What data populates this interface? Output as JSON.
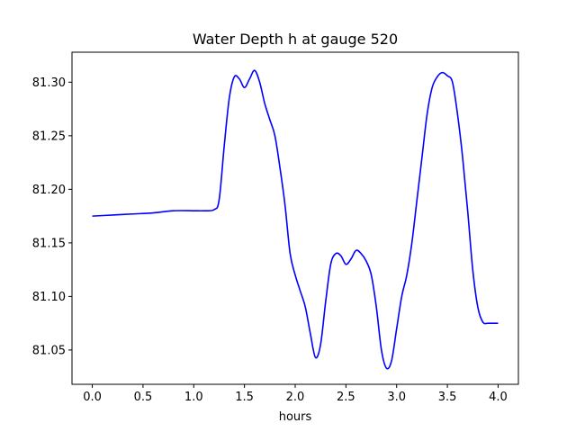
{
  "chart_data": {
    "type": "line",
    "title": "Water Depth h at gauge 520",
    "xlabel": "hours",
    "ylabel": "",
    "xlim": [
      -0.2,
      4.2
    ],
    "ylim": [
      81.018,
      81.328
    ],
    "xticks": [
      0.0,
      0.5,
      1.0,
      1.5,
      2.0,
      2.5,
      3.0,
      3.5,
      4.0
    ],
    "xtick_labels": [
      "0.0",
      "0.5",
      "1.0",
      "1.5",
      "2.0",
      "2.5",
      "3.0",
      "3.5",
      "4.0"
    ],
    "yticks": [
      81.05,
      81.1,
      81.15,
      81.2,
      81.25,
      81.3
    ],
    "ytick_labels": [
      "81.05",
      "81.10",
      "81.15",
      "81.20",
      "81.25",
      "81.30"
    ],
    "grid": false,
    "legend": "none",
    "series": [
      {
        "color": "#0000ff",
        "x": [
          0.0,
          0.2,
          0.4,
          0.6,
          0.8,
          1.0,
          1.1,
          1.2,
          1.25,
          1.3,
          1.35,
          1.4,
          1.45,
          1.5,
          1.55,
          1.6,
          1.65,
          1.7,
          1.75,
          1.8,
          1.85,
          1.9,
          1.95,
          2.0,
          2.05,
          2.1,
          2.15,
          2.2,
          2.25,
          2.3,
          2.35,
          2.4,
          2.45,
          2.5,
          2.55,
          2.6,
          2.65,
          2.7,
          2.75,
          2.8,
          2.85,
          2.9,
          2.95,
          3.0,
          3.05,
          3.1,
          3.15,
          3.2,
          3.25,
          3.3,
          3.35,
          3.4,
          3.45,
          3.5,
          3.55,
          3.6,
          3.65,
          3.7,
          3.75,
          3.8,
          3.85,
          3.9,
          3.95,
          4.0
        ],
        "y": [
          81.175,
          81.176,
          81.177,
          81.178,
          81.18,
          81.18,
          81.18,
          81.181,
          81.19,
          81.24,
          81.285,
          81.305,
          81.303,
          81.295,
          81.303,
          81.311,
          81.3,
          81.28,
          81.265,
          81.25,
          81.22,
          81.185,
          81.14,
          81.12,
          81.105,
          81.09,
          81.065,
          81.043,
          81.055,
          81.095,
          81.13,
          81.14,
          81.138,
          81.13,
          81.135,
          81.143,
          81.14,
          81.133,
          81.12,
          81.09,
          81.05,
          81.033,
          81.04,
          81.07,
          81.1,
          81.12,
          81.15,
          81.19,
          81.23,
          81.27,
          81.295,
          81.305,
          81.309,
          81.306,
          81.3,
          81.27,
          81.23,
          81.18,
          81.125,
          81.09,
          81.076,
          81.075,
          81.075,
          81.075
        ]
      }
    ]
  }
}
